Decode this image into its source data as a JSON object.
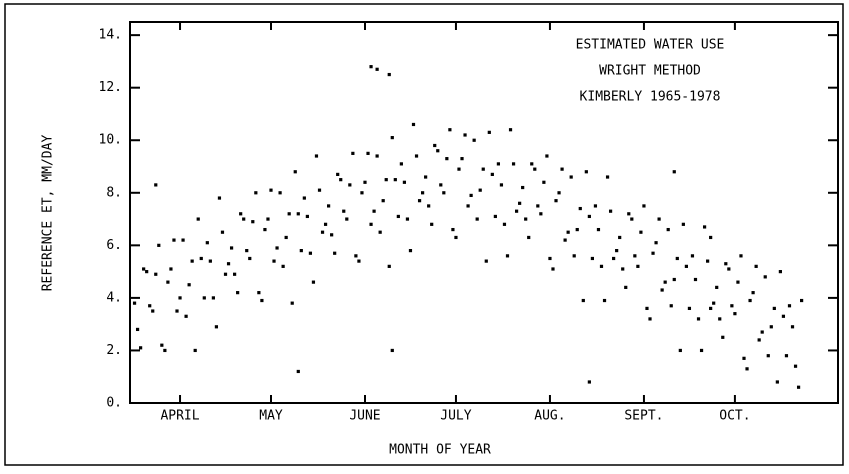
{
  "chart_data": {
    "type": "scatter",
    "title_lines": [
      "ESTIMATED WATER USE",
      "WRIGHT METHOD",
      "KIMBERLY 1965-1978"
    ],
    "ylabel": "REFERENCE ET, MM/DAY",
    "xlabel": "MONTH OF YEAR",
    "color": "#000000",
    "xlim": [
      -1.5,
      232
    ],
    "ylim": [
      0,
      14.5
    ],
    "xticks": [
      {
        "value": 15,
        "label": "APRIL"
      },
      {
        "value": 45,
        "label": "MAY"
      },
      {
        "value": 76,
        "label": "JUNE"
      },
      {
        "value": 106,
        "label": "JULY"
      },
      {
        "value": 137,
        "label": "AUG."
      },
      {
        "value": 168,
        "label": "SEPT."
      },
      {
        "value": 198,
        "label": "OCT."
      }
    ],
    "yticks": [
      {
        "value": 0,
        "label": "0."
      },
      {
        "value": 2,
        "label": "2."
      },
      {
        "value": 4,
        "label": "4."
      },
      {
        "value": 6,
        "label": "6."
      },
      {
        "value": 8,
        "label": "8."
      },
      {
        "value": 10,
        "label": "10."
      },
      {
        "value": 12,
        "label": "12."
      },
      {
        "value": 14,
        "label": "14."
      }
    ],
    "x": [
      0,
      2,
      4,
      6,
      8,
      10,
      12,
      14,
      16,
      18,
      20,
      22,
      24,
      26,
      28,
      30,
      32,
      34,
      36,
      38,
      40,
      42,
      44,
      46,
      48,
      50,
      52,
      54,
      56,
      58,
      60,
      62,
      64,
      66,
      68,
      70,
      72,
      74,
      76,
      78,
      80,
      82,
      84,
      86,
      88,
      90,
      92,
      94,
      96,
      98,
      100,
      102,
      104,
      106,
      108,
      110,
      112,
      114,
      116,
      118,
      120,
      122,
      124,
      126,
      128,
      130,
      132,
      134,
      136,
      138,
      140,
      142,
      144,
      146,
      148,
      150,
      152,
      154,
      156,
      158,
      160,
      162,
      164,
      166,
      168,
      170,
      172,
      174,
      176,
      178,
      180,
      182,
      184,
      186,
      188,
      190,
      192,
      194,
      196,
      198,
      200,
      202,
      204,
      206,
      208,
      210,
      212,
      214,
      216,
      218,
      220,
      1,
      3,
      5,
      7,
      9,
      11,
      13,
      15,
      17,
      19,
      21,
      23,
      25,
      27,
      29,
      31,
      33,
      35,
      37,
      39,
      41,
      43,
      45,
      47,
      49,
      51,
      53,
      55,
      57,
      59,
      61,
      63,
      65,
      67,
      69,
      71,
      73,
      75,
      77,
      79,
      81,
      83,
      85,
      87,
      89,
      91,
      93,
      95,
      97,
      99,
      101,
      103,
      105,
      107,
      109,
      111,
      113,
      115,
      117,
      119,
      121,
      123,
      125,
      127,
      129,
      131,
      133,
      135,
      137,
      139,
      141,
      143,
      145,
      147,
      149,
      151,
      153,
      155,
      157,
      159,
      161,
      163,
      165,
      167,
      169,
      171,
      173,
      175,
      177,
      179,
      181,
      183,
      185,
      187,
      189,
      191,
      193,
      195,
      197,
      199,
      201,
      203,
      205,
      207,
      209,
      211,
      213,
      215,
      217,
      219,
      78,
      80,
      84,
      54,
      85,
      150,
      178,
      190,
      7
    ],
    "y": [
      3.8,
      2.1,
      5.0,
      3.5,
      6.0,
      2.0,
      5.1,
      3.5,
      6.2,
      4.5,
      2.0,
      5.5,
      6.1,
      4.0,
      7.8,
      4.9,
      5.9,
      4.2,
      7.0,
      5.5,
      8.0,
      3.9,
      7.0,
      5.4,
      8.0,
      6.3,
      3.8,
      7.2,
      7.8,
      5.7,
      9.4,
      6.5,
      7.5,
      5.7,
      8.5,
      7.0,
      9.5,
      5.4,
      8.4,
      6.8,
      9.4,
      7.7,
      5.2,
      8.5,
      9.1,
      7.0,
      10.6,
      7.7,
      8.6,
      6.8,
      9.6,
      8.0,
      10.4,
      6.3,
      9.3,
      7.5,
      10.0,
      8.1,
      5.4,
      8.7,
      9.1,
      6.8,
      10.4,
      7.3,
      8.2,
      6.3,
      8.9,
      7.2,
      9.4,
      5.1,
      8.0,
      6.2,
      8.6,
      6.6,
      3.9,
      7.1,
      7.5,
      5.2,
      8.6,
      5.5,
      6.3,
      4.4,
      7.0,
      5.2,
      7.5,
      3.2,
      6.1,
      4.3,
      6.6,
      4.7,
      2.0,
      5.2,
      5.6,
      3.2,
      6.7,
      3.6,
      4.4,
      2.5,
      5.1,
      3.4,
      5.6,
      1.3,
      4.2,
      2.4,
      4.8,
      2.9,
      0.8,
      3.3,
      3.7,
      1.4,
      3.9,
      2.8,
      5.1,
      3.7,
      4.9,
      2.2,
      4.6,
      6.2,
      4.0,
      3.3,
      5.4,
      7.0,
      4.0,
      5.4,
      2.9,
      6.5,
      5.3,
      4.9,
      7.2,
      5.8,
      6.9,
      4.2,
      6.6,
      8.1,
      5.9,
      5.2,
      7.2,
      8.8,
      5.8,
      7.1,
      4.6,
      8.1,
      6.8,
      6.4,
      8.7,
      7.3,
      8.3,
      5.6,
      8.0,
      9.5,
      7.3,
      6.5,
      8.5,
      10.1,
      7.1,
      8.4,
      5.8,
      9.4,
      8.0,
      7.5,
      9.8,
      8.3,
      9.3,
      6.6,
      8.9,
      10.2,
      7.9,
      7.0,
      8.9,
      10.3,
      7.1,
      8.3,
      5.6,
      9.1,
      7.6,
      7.0,
      9.1,
      7.5,
      8.4,
      5.5,
      7.7,
      8.9,
      6.5,
      5.6,
      7.4,
      8.8,
      5.5,
      6.6,
      3.9,
      7.3,
      5.8,
      5.1,
      7.2,
      5.6,
      6.5,
      3.6,
      5.7,
      7.0,
      4.6,
      3.7,
      5.5,
      6.8,
      3.6,
      4.7,
      2.0,
      5.4,
      3.8,
      3.2,
      5.3,
      3.7,
      4.6,
      1.7,
      3.9,
      5.2,
      2.7,
      1.8,
      3.6,
      5.0,
      1.8,
      2.9,
      0.6,
      12.8,
      12.7,
      12.5,
      1.2,
      2.0,
      0.8,
      8.8,
      6.3,
      8.3
    ]
  }
}
